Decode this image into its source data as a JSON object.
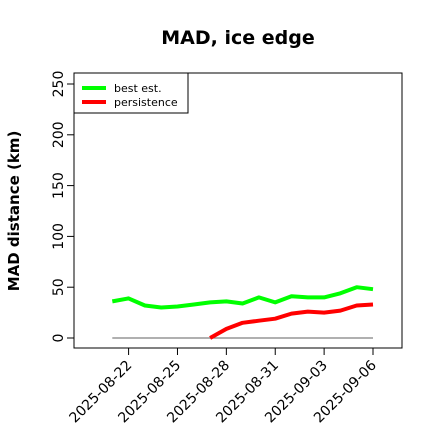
{
  "chart_data": {
    "type": "line",
    "title": "MAD, ice edge",
    "xlabel": "",
    "ylabel": "MAD distance (km)",
    "ylim": [
      0,
      250
    ],
    "xlim": [
      "2025-08-20",
      "2025-09-06"
    ],
    "yticks": [
      0,
      50,
      100,
      150,
      200,
      250
    ],
    "xticks": [
      "2025-08-22",
      "2025-08-25",
      "2025-08-28",
      "2025-08-31",
      "2025-09-03",
      "2025-09-06"
    ],
    "grid": false,
    "legend_position": "top-left",
    "reference_line": {
      "y": 0,
      "color": "#808080"
    },
    "x": [
      "2025-08-21",
      "2025-08-22",
      "2025-08-23",
      "2025-08-24",
      "2025-08-25",
      "2025-08-26",
      "2025-08-27",
      "2025-08-28",
      "2025-08-29",
      "2025-08-30",
      "2025-08-31",
      "2025-09-01",
      "2025-09-02",
      "2025-09-03",
      "2025-09-04",
      "2025-09-05",
      "2025-09-06"
    ],
    "series": [
      {
        "name": "best est.",
        "color": "#00ff00",
        "values": [
          36,
          39,
          32,
          30,
          31,
          33,
          35,
          36,
          34,
          40,
          35,
          41,
          40,
          40,
          44,
          50,
          48
        ]
      },
      {
        "name": "persistence",
        "color": "#ff0000",
        "values": [
          null,
          null,
          null,
          null,
          null,
          null,
          0,
          9,
          15,
          17,
          19,
          24,
          26,
          25,
          27,
          32,
          33
        ]
      }
    ]
  }
}
